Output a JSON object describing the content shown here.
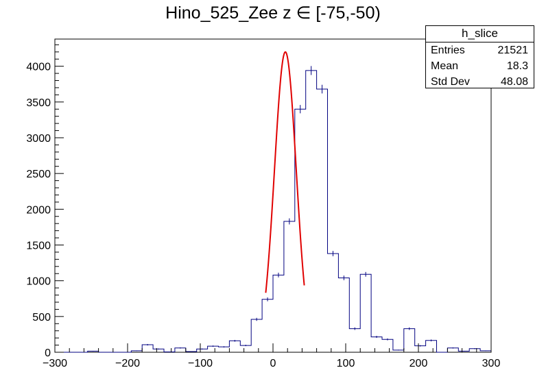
{
  "title_main": "Hino_525_Zee z",
  "title_symbol": "∈",
  "title_range": "[-75,-50)",
  "stats": {
    "name": "h_slice",
    "rows": [
      {
        "label": "Entries",
        "value": "21521"
      },
      {
        "label": "Mean",
        "value": "18.3"
      },
      {
        "label": "Std Dev",
        "value": "48.08"
      }
    ]
  },
  "colors": {
    "histogram": "#000080",
    "fit": "#e00000",
    "axis": "#000000"
  },
  "chart_data": {
    "type": "histogram",
    "xlim": [
      -300,
      300
    ],
    "ylim": [
      0,
      4380
    ],
    "xticks": [
      -300,
      -200,
      -100,
      0,
      100,
      200,
      300
    ],
    "yticks": [
      0,
      500,
      1000,
      1500,
      2000,
      2500,
      3000,
      3500,
      4000
    ],
    "xlabel": "",
    "ylabel": "",
    "bin_width": 15,
    "bins": [
      {
        "lo": -300,
        "v": 0
      },
      {
        "lo": -285,
        "v": 0
      },
      {
        "lo": -270,
        "v": 0
      },
      {
        "lo": -255,
        "v": 15
      },
      {
        "lo": -240,
        "v": 0
      },
      {
        "lo": -225,
        "v": 0
      },
      {
        "lo": -210,
        "v": 0
      },
      {
        "lo": -195,
        "v": 20
      },
      {
        "lo": -180,
        "v": 105
      },
      {
        "lo": -165,
        "v": 45
      },
      {
        "lo": -150,
        "v": 5
      },
      {
        "lo": -135,
        "v": 60
      },
      {
        "lo": -120,
        "v": 10
      },
      {
        "lo": -105,
        "v": 45
      },
      {
        "lo": -90,
        "v": 85
      },
      {
        "lo": -75,
        "v": 75
      },
      {
        "lo": -60,
        "v": 160
      },
      {
        "lo": -45,
        "v": 95
      },
      {
        "lo": -30,
        "v": 460
      },
      {
        "lo": -15,
        "v": 740
      },
      {
        "lo": 0,
        "v": 1080
      },
      {
        "lo": 15,
        "v": 1830
      },
      {
        "lo": 30,
        "v": 3400
      },
      {
        "lo": 45,
        "v": 3940
      },
      {
        "lo": 60,
        "v": 3680
      },
      {
        "lo": 75,
        "v": 1380
      },
      {
        "lo": 90,
        "v": 1040
      },
      {
        "lo": 105,
        "v": 330
      },
      {
        "lo": 120,
        "v": 1090
      },
      {
        "lo": 135,
        "v": 215
      },
      {
        "lo": 150,
        "v": 180
      },
      {
        "lo": 165,
        "v": 30
      },
      {
        "lo": 180,
        "v": 330
      },
      {
        "lo": 195,
        "v": 90
      },
      {
        "lo": 210,
        "v": 165
      },
      {
        "lo": 225,
        "v": 0
      },
      {
        "lo": 240,
        "v": 60
      },
      {
        "lo": 255,
        "v": 15
      },
      {
        "lo": 270,
        "v": 50
      },
      {
        "lo": 285,
        "v": 20
      }
    ],
    "fit": {
      "type": "gaus",
      "amplitude": 4200,
      "mean": 17,
      "sigma": 15,
      "range": [
        -10,
        43
      ]
    }
  }
}
